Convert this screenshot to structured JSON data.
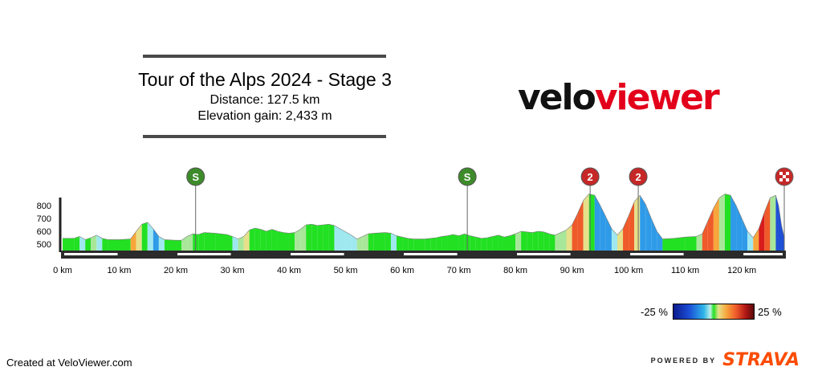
{
  "header": {
    "title": "Tour of the Alps 2024 - Stage 3",
    "distance": "Distance: 127.5 km",
    "elevation_gain": "Elevation gain: 2,433 m"
  },
  "logo": {
    "part1": "velo",
    "part2": "viewer"
  },
  "footer": {
    "created": "Created at VeloViewer.com",
    "powered": "POWERED BY",
    "brand": "STRAVA"
  },
  "legend": {
    "min_label": "-25 %",
    "max_label": "25 %"
  },
  "colors": {
    "flat": "#22e022",
    "brand_red": "#e3001b",
    "strava_orange": "#fc4c02",
    "sprint_marker": "#3d8b2a",
    "climb_marker": "#c62828"
  },
  "chart_data": {
    "type": "area",
    "title": "Tour of the Alps 2024 - Stage 3",
    "xlabel": "",
    "ylabel": "",
    "x_unit": "km",
    "xlim": [
      0,
      127.5
    ],
    "ylim": [
      450,
      900
    ],
    "x_ticks": [
      0,
      10,
      20,
      30,
      40,
      50,
      60,
      70,
      80,
      90,
      100,
      110,
      120
    ],
    "x_tick_labels": [
      "0 km",
      "10 km",
      "20 km",
      "30 km",
      "40 km",
      "50 km",
      "60 km",
      "70 km",
      "80 km",
      "90 km",
      "100 km",
      "110 km",
      "120 km"
    ],
    "y_ticks": [
      500,
      600,
      700,
      800
    ],
    "y_tick_labels": [
      "500",
      "600",
      "700",
      "800"
    ],
    "profile": [
      [
        0,
        545
      ],
      [
        2,
        545
      ],
      [
        3,
        560
      ],
      [
        4,
        535
      ],
      [
        5,
        550
      ],
      [
        6,
        570
      ],
      [
        7,
        545
      ],
      [
        8,
        535
      ],
      [
        10,
        535
      ],
      [
        12,
        540
      ],
      [
        13,
        600
      ],
      [
        14,
        655
      ],
      [
        15,
        670
      ],
      [
        16,
        620
      ],
      [
        17,
        560
      ],
      [
        18,
        535
      ],
      [
        20,
        530
      ],
      [
        21,
        530
      ],
      [
        22,
        560
      ],
      [
        23,
        580
      ],
      [
        24,
        575
      ],
      [
        25,
        590
      ],
      [
        27,
        585
      ],
      [
        29,
        575
      ],
      [
        30,
        560
      ],
      [
        31,
        540
      ],
      [
        32,
        560
      ],
      [
        33,
        610
      ],
      [
        34,
        625
      ],
      [
        35,
        615
      ],
      [
        36,
        600
      ],
      [
        37,
        615
      ],
      [
        38,
        600
      ],
      [
        39,
        590
      ],
      [
        40,
        585
      ],
      [
        41,
        590
      ],
      [
        42,
        615
      ],
      [
        43,
        650
      ],
      [
        44,
        655
      ],
      [
        45,
        645
      ],
      [
        46,
        650
      ],
      [
        47,
        655
      ],
      [
        48,
        645
      ],
      [
        49,
        620
      ],
      [
        50,
        595
      ],
      [
        51,
        570
      ],
      [
        52,
        540
      ],
      [
        53,
        560
      ],
      [
        54,
        580
      ],
      [
        55,
        585
      ],
      [
        57,
        590
      ],
      [
        58,
        585
      ],
      [
        59,
        565
      ],
      [
        60,
        555
      ],
      [
        61,
        545
      ],
      [
        62,
        540
      ],
      [
        64,
        540
      ],
      [
        65,
        545
      ],
      [
        66,
        550
      ],
      [
        67,
        560
      ],
      [
        68,
        565
      ],
      [
        69,
        575
      ],
      [
        70,
        565
      ],
      [
        71,
        580
      ],
      [
        72,
        565
      ],
      [
        73,
        555
      ],
      [
        74,
        545
      ],
      [
        75,
        550
      ],
      [
        76,
        560
      ],
      [
        77,
        570
      ],
      [
        78,
        555
      ],
      [
        79,
        565
      ],
      [
        80,
        580
      ],
      [
        81,
        600
      ],
      [
        82,
        595
      ],
      [
        83,
        590
      ],
      [
        84,
        600
      ],
      [
        85,
        595
      ],
      [
        86,
        580
      ],
      [
        87,
        570
      ],
      [
        88,
        590
      ],
      [
        89,
        610
      ],
      [
        90,
        650
      ],
      [
        91,
        740
      ],
      [
        92,
        840
      ],
      [
        93,
        890
      ],
      [
        94,
        880
      ],
      [
        95,
        800
      ],
      [
        96,
        710
      ],
      [
        97,
        620
      ],
      [
        98,
        570
      ],
      [
        99,
        620
      ],
      [
        100,
        720
      ],
      [
        101,
        830
      ],
      [
        102,
        880
      ],
      [
        103,
        810
      ],
      [
        104,
        700
      ],
      [
        105,
        600
      ],
      [
        106,
        540
      ],
      [
        108,
        545
      ],
      [
        110,
        555
      ],
      [
        112,
        560
      ],
      [
        113,
        580
      ],
      [
        114,
        680
      ],
      [
        115,
        780
      ],
      [
        116,
        860
      ],
      [
        117,
        890
      ],
      [
        118,
        880
      ],
      [
        119,
        800
      ],
      [
        120,
        700
      ],
      [
        121,
        600
      ],
      [
        122,
        550
      ],
      [
        123,
        620
      ],
      [
        124,
        750
      ],
      [
        125,
        860
      ],
      [
        126,
        880
      ],
      [
        126.5,
        800
      ],
      [
        127,
        650
      ],
      [
        127.5,
        550
      ]
    ],
    "markers": [
      {
        "type": "sprint",
        "label": "S",
        "km": 23.5
      },
      {
        "type": "sprint",
        "label": "S",
        "km": 71.5
      },
      {
        "type": "climb",
        "label": "2",
        "km": 93.2
      },
      {
        "type": "climb",
        "label": "2",
        "km": 101.7
      },
      {
        "type": "finish",
        "label": "",
        "km": 127.5
      }
    ],
    "gradient_scale": {
      "min": -25,
      "max": 25,
      "unit": "%"
    }
  }
}
